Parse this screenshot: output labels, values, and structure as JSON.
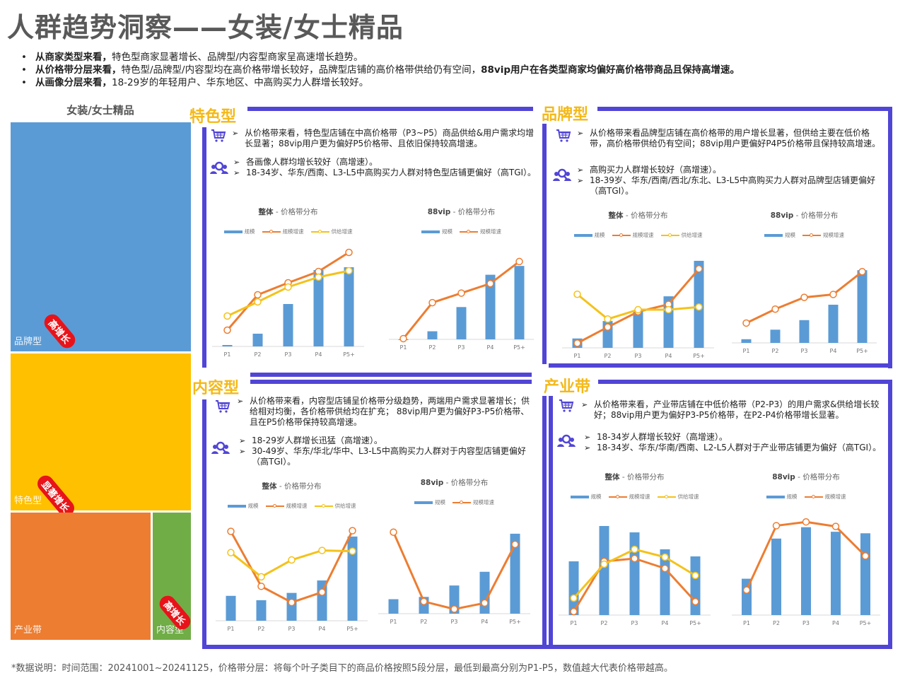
{
  "page": {
    "title": "人群趋势洞察——女装/女士精品",
    "bullets": [
      {
        "bold": "从商家类型来看，",
        "text": "特色型商家显著增长、品牌型/内容型商家呈高速增长趋势。",
        "bold2": ""
      },
      {
        "bold": "从价格带分层来看，",
        "text": "特色型/品牌型/内容型均在高价格带增长较好，品牌型店铺的高价格带供给仍有空间，",
        "bold2": "88vip用户在各类型商家均偏好高价格带商品且保持高增速。"
      },
      {
        "bold": "从画像分层来看，",
        "text": "18-29岁的年轻用户、华东地区、中高购买力人群增长较好。",
        "bold2": ""
      }
    ],
    "footer": "*数据说明：时间范围：20241001~20241125，价格带分层：将每个叶子类目下的商品价格按照5段分层，最低到最高分别为P1-P5，数值越大代表价格带越高。"
  },
  "treemap": {
    "title": "女装/女士精品",
    "cells": [
      {
        "label": "品牌型",
        "color": "#5b9bd5",
        "badge": "高增长"
      },
      {
        "label": "特色型",
        "color": "#ffc000",
        "badge": "显著增长"
      },
      {
        "label": "产业带",
        "color": "#ed7d31",
        "badge": ""
      },
      {
        "label": "内容型",
        "color": "#70ad47",
        "badge": "高增长"
      }
    ]
  },
  "colors": {
    "bar": "#5b9bd5",
    "scale_growth": "#ed7d31",
    "supply_growth": "#f4c21b",
    "frame": "#5145d6",
    "section_title": "#f4b919"
  },
  "legend": {
    "bar": "规模",
    "scale_growth": "规模增速",
    "supply_growth": "供给增速"
  },
  "sections": [
    {
      "name": "特色型",
      "price_text": "从价格带来看，特色型店铺在中高价格带（P3~P5）商品供给&用户需求均增长显著；88vip用户更为偏好P5价格带、且依旧保持较高增速。",
      "persona": [
        "各画像人群均增长较好（高增速）。",
        "18-34岁、华东/西南、L3-L5中高购买力人群对特色型店铺更偏好（高TGI）。"
      ]
    },
    {
      "name": "品牌型",
      "price_text": "从价格带来看品牌型店铺在高价格带的用户增长显著，但供给主要在低价格带，高价格带供给仍有空间；88vip用户更偏好P4P5价格带且保持较高增速。",
      "persona": [
        "高购买力人群增长较好（高增速）。",
        "18-39岁、华东/西南/西北/东北、L3-L5中高购买力人群对品牌型店铺更偏好（高TGI）。"
      ]
    },
    {
      "name": "内容型",
      "price_text": "从价格带来看，内容型店铺呈价格带分级趋势，两端用户需求显著增长；供给相对均衡，各价格带供给均在扩充； 88vip用户更为偏好P3-P5价格带、且在P5价格带保持较高增速。",
      "persona": [
        "18-29岁人群增长迅猛（高增速）。",
        "30-49岁、华东/华北/华中、L3-L5中高购买力人群对于内容型店铺更偏好（高TGI）。"
      ]
    },
    {
      "name": "产业带",
      "price_text": "从价格带来看，产业带店铺在中低价格带（P2-P3）的用户需求&供给增长较好；88vip用户更为偏好P3-P5价格带，在P2-P4价格带增长显著。",
      "persona": [
        "18-34岁人群增长较好（高增速）。",
        "18-34岁、华东/华南/西南、L2-L5人群对于产业带店铺更为偏好（高TGI）。"
      ]
    }
  ],
  "chart_data": [
    {
      "panel": "特色型",
      "type": "bar+line",
      "title": "整体 - 价格带分布",
      "categories": [
        "P1",
        "P2",
        "P3",
        "P4",
        "P5+"
      ],
      "series": [
        {
          "name": "规模",
          "type": "bar",
          "values": [
            2,
            18,
            60,
            108,
            112
          ]
        },
        {
          "name": "规模增速",
          "type": "line",
          "values": [
            23,
            73,
            90,
            106,
            133
          ]
        },
        {
          "name": "供给增速",
          "type": "line",
          "values": [
            43,
            63,
            84,
            98,
            107
          ]
        }
      ],
      "ylim": [
        0,
        145
      ]
    },
    {
      "panel": "特色型",
      "type": "bar+line",
      "title": "88vip - 价格带分布",
      "categories": [
        "P1",
        "P2",
        "P3",
        "P4",
        "P5+"
      ],
      "series": [
        {
          "name": "规模",
          "type": "bar",
          "values": [
            0,
            11,
            44,
            88,
            100
          ]
        },
        {
          "name": "规模增速",
          "type": "line",
          "values": [
            1,
            50,
            63,
            76,
            106
          ]
        }
      ],
      "ylim": [
        0,
        130
      ]
    },
    {
      "panel": "品牌型",
      "type": "bar+line",
      "title": "整体 - 价格带分布",
      "categories": [
        "P1",
        "P2",
        "P3",
        "P4",
        "P5+"
      ],
      "series": [
        {
          "name": "规模",
          "type": "bar",
          "values": [
            14,
            40,
            54,
            77,
            130
          ]
        },
        {
          "name": "规模增速",
          "type": "line",
          "values": [
            7,
            31,
            54,
            65,
            118
          ]
        },
        {
          "name": "供给增速",
          "type": "line",
          "values": [
            80,
            43,
            57,
            57,
            61
          ]
        }
      ],
      "ylim": [
        0,
        150
      ]
    },
    {
      "panel": "品牌型",
      "type": "bar+line",
      "title": "88vip - 价格带分布",
      "categories": [
        "P1",
        "P2",
        "P3",
        "P4",
        "P5+"
      ],
      "series": [
        {
          "name": "规模",
          "type": "bar",
          "values": [
            5,
            18,
            31,
            52,
            99
          ]
        },
        {
          "name": "规模增速",
          "type": "line",
          "values": [
            27,
            46,
            62,
            66,
            97
          ]
        }
      ],
      "ylim": [
        0,
        130
      ]
    },
    {
      "panel": "内容型",
      "type": "bar+line",
      "title": "整体 - 价格带分布",
      "categories": [
        "P1",
        "P2",
        "P3",
        "P4",
        "P5+"
      ],
      "series": [
        {
          "name": "规模",
          "type": "bar",
          "values": [
            34,
            28,
            38,
            55,
            115
          ]
        },
        {
          "name": "规模增速",
          "type": "line",
          "values": [
            122,
            47,
            25,
            39,
            123
          ]
        },
        {
          "name": "供给增速",
          "type": "line",
          "values": [
            93,
            60,
            83,
            96,
            95
          ]
        }
      ],
      "ylim": [
        0,
        140
      ]
    },
    {
      "panel": "内容型",
      "type": "bar+line",
      "title": "88vip - 价格带分布",
      "categories": [
        "P1",
        "P2",
        "P3",
        "P4",
        "P5+"
      ],
      "series": [
        {
          "name": "规模",
          "type": "bar",
          "values": [
            19,
            22,
            37,
            55,
            105
          ]
        },
        {
          "name": "规模增速",
          "type": "line",
          "values": [
            107,
            16,
            6,
            14,
            91
          ]
        }
      ],
      "ylim": [
        0,
        130
      ]
    },
    {
      "panel": "产业带",
      "type": "bar+line",
      "title": "整体 - 价格带分布",
      "categories": [
        "P1",
        "P2",
        "P3",
        "P4",
        "P5+"
      ],
      "series": [
        {
          "name": "规模",
          "type": "bar",
          "values": [
            76,
            126,
            117,
            93,
            83
          ]
        },
        {
          "name": "规模增速",
          "type": "line",
          "values": [
            5,
            76,
            80,
            66,
            19
          ]
        },
        {
          "name": "供给增速",
          "type": "line",
          "values": [
            24,
            72,
            93,
            82,
            56
          ]
        }
      ],
      "ylim": [
        0,
        150
      ]
    },
    {
      "panel": "产业带",
      "type": "bar+line",
      "title": "88vip - 价格带分布",
      "categories": [
        "P1",
        "P2",
        "P3",
        "P4",
        "P5+"
      ],
      "series": [
        {
          "name": "规模",
          "type": "bar",
          "values": [
            48,
            101,
            116,
            110,
            108
          ]
        },
        {
          "name": "规模增速",
          "type": "line",
          "values": [
            33,
            118,
            123,
            117,
            78
          ]
        }
      ],
      "ylim": [
        0,
        140
      ]
    }
  ]
}
